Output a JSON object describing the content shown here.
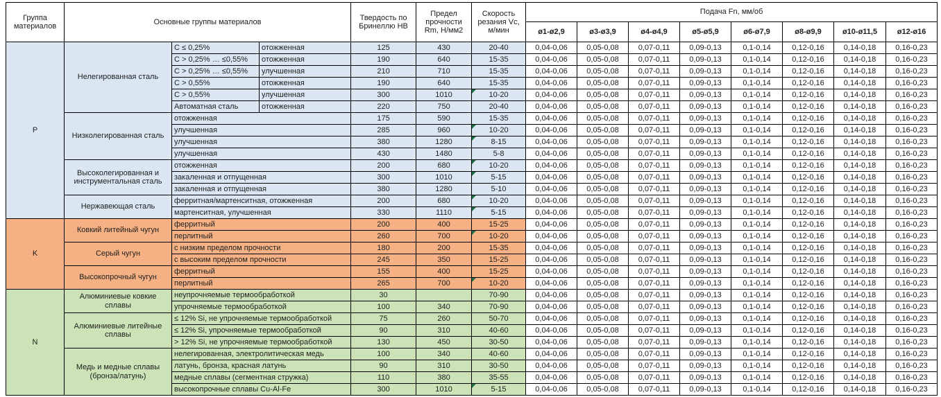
{
  "header": {
    "col_group": "Группа материалов",
    "col_main": "Основные группы материалов",
    "col_hb": "Твердость по Бринеллю HB",
    "col_rm": "Предел прочности Rm, Н/мм2",
    "col_vc": "Скорость резания Vc, м/мин",
    "feed_title": "Подача Fn, мм/об",
    "feed_cols": [
      "ø1-ø2,9",
      "ø3-ø3,9",
      "ø4-ø4,9",
      "ø5-ø5,9",
      "ø6-ø7,9",
      "ø8-ø9,9",
      "ø10-ø11,5",
      "ø12-ø16"
    ]
  },
  "feed_values": [
    "0,04-0,06",
    "0,05-0,08",
    "0,07-0,11",
    "0,09-0,13",
    "0,1-0,14",
    "0,12-0,16",
    "0,14-0,18",
    "0,16-0,23"
  ],
  "colors": {
    "P": "#DAE7F3",
    "K": "#F5B183",
    "N": "#CBE3B6",
    "error_indicator": "#1E7145",
    "border": "#000000"
  },
  "groups": [
    {
      "code": "P",
      "families": [
        {
          "name": "Нелегированная сталь",
          "rows": [
            {
              "grade": "C ≤ 0,25%",
              "state": "отожженная",
              "hb": "125",
              "rm": "430",
              "vc": "20-40",
              "flag": false
            },
            {
              "grade": "C > 0,25% … ≤0,55%",
              "state": "отожженная",
              "hb": "190",
              "rm": "640",
              "vc": "15-35",
              "flag": false
            },
            {
              "grade": "C > 0,25% … ≤0,55%",
              "state": "улучшенная",
              "hb": "210",
              "rm": "710",
              "vc": "15-35",
              "flag": false
            },
            {
              "grade": "C > 0,55%",
              "state": "отожженная",
              "hb": "190",
              "rm": "640",
              "vc": "15-35",
              "flag": false
            },
            {
              "grade": "C > 0,55%",
              "state": "улучшенная",
              "hb": "300",
              "rm": "1010",
              "vc": "10-20",
              "flag": true
            },
            {
              "grade": "Автоматная сталь",
              "state": "отожженная",
              "hb": "220",
              "rm": "750",
              "vc": "20-40",
              "flag": false
            }
          ]
        },
        {
          "name": "Низколегированная сталь",
          "rows": [
            {
              "state": "отожженная",
              "hb": "175",
              "rm": "590",
              "vc": "15-35",
              "flag": false
            },
            {
              "state": "улучшенная",
              "hb": "285",
              "rm": "960",
              "vc": "10-20",
              "flag": true
            },
            {
              "state": "улучшенная",
              "hb": "380",
              "rm": "1280",
              "vc": "8-15",
              "flag": true
            },
            {
              "state": "улучшенная",
              "hb": "430",
              "rm": "1480",
              "vc": "5-8",
              "flag": false
            }
          ]
        },
        {
          "name": "Высоколегированная и инструментальная сталь",
          "rows": [
            {
              "state": "отожженная",
              "hb": "200",
              "rm": "680",
              "vc": "10-20",
              "flag": true
            },
            {
              "state": "закаленная и отпущенная",
              "hb": "300",
              "rm": "1010",
              "vc": "5-15",
              "flag": true
            },
            {
              "state": "закаленная и отпущенная",
              "hb": "380",
              "rm": "1280",
              "vc": "5-10",
              "flag": false
            }
          ]
        },
        {
          "name": "Нержавеющая сталь",
          "rows": [
            {
              "state": "ферритная/мартенситная, отожженная",
              "hb": "200",
              "rm": "680",
              "vc": "10-20",
              "flag": true
            },
            {
              "state": "мартенситная, улучшенная",
              "hb": "330",
              "rm": "1110",
              "vc": "5-15",
              "flag": true
            }
          ]
        }
      ]
    },
    {
      "code": "K",
      "families": [
        {
          "name": "Ковкий литейный чугун",
          "rows": [
            {
              "state": "ферритный",
              "hb": "200",
              "rm": "400",
              "vc": "15-25",
              "flag": false
            },
            {
              "state": "перлитный",
              "hb": "260",
              "rm": "700",
              "vc": "10-20",
              "flag": true
            }
          ]
        },
        {
          "name": "Серый чугун",
          "rows": [
            {
              "state": "с низким пределом прочности",
              "hb": "180",
              "rm": "200",
              "vc": "15-35",
              "flag": false
            },
            {
              "state": "с высоким пределом прочности",
              "hb": "245",
              "rm": "350",
              "vc": "15-25",
              "flag": false
            }
          ]
        },
        {
          "name": "Высокопрочный чугун",
          "rows": [
            {
              "state": "ферритный",
              "hb": "155",
              "rm": "400",
              "vc": "15-25",
              "flag": false
            },
            {
              "state": "перлитный",
              "hb": "265",
              "rm": "700",
              "vc": "10-20",
              "flag": true
            }
          ]
        }
      ]
    },
    {
      "code": "N",
      "families": [
        {
          "name": "Алюминиевые ковкие сплавы",
          "rows": [
            {
              "state": "неупрочняемые термообработкой",
              "hb": "30",
              "rm": "",
              "vc": "70-90",
              "flag": false
            },
            {
              "state": "упрочняемые термообработкой",
              "hb": "100",
              "rm": "340",
              "vc": "70-90",
              "flag": false
            }
          ]
        },
        {
          "name": "Алюминиевые литейные сплавы",
          "rows": [
            {
              "state": "≤ 12% Si, не упрочняемые термообработкой",
              "hb": "75",
              "rm": "260",
              "vc": "50-70",
              "flag": false
            },
            {
              "state": "≤ 12% Si, упрочняемые термообработкой",
              "hb": "90",
              "rm": "310",
              "vc": "40-60",
              "flag": false
            },
            {
              "state": "> 12% Si, не упрочняемые термообработкой",
              "hb": "130",
              "rm": "450",
              "vc": "30-50",
              "flag": false
            }
          ]
        },
        {
          "name": "Медь и медные сплавы (бронза/латунь)",
          "rows": [
            {
              "state": "нелегированная, электролитическая медь",
              "hb": "100",
              "rm": "340",
              "vc": "40-60",
              "flag": false
            },
            {
              "state": "латунь, бронза, красная латунь",
              "hb": "90",
              "rm": "310",
              "vc": "30-50",
              "flag": false
            },
            {
              "state": "медные сплавы (сегментная стружка)",
              "hb": "110",
              "rm": "380",
              "vc": "35-55",
              "flag": false
            },
            {
              "state": "высокопрочные сплавы Cu-Al-Fe",
              "hb": "300",
              "rm": "1010",
              "vc": "5-15",
              "flag": true
            }
          ]
        }
      ]
    }
  ]
}
